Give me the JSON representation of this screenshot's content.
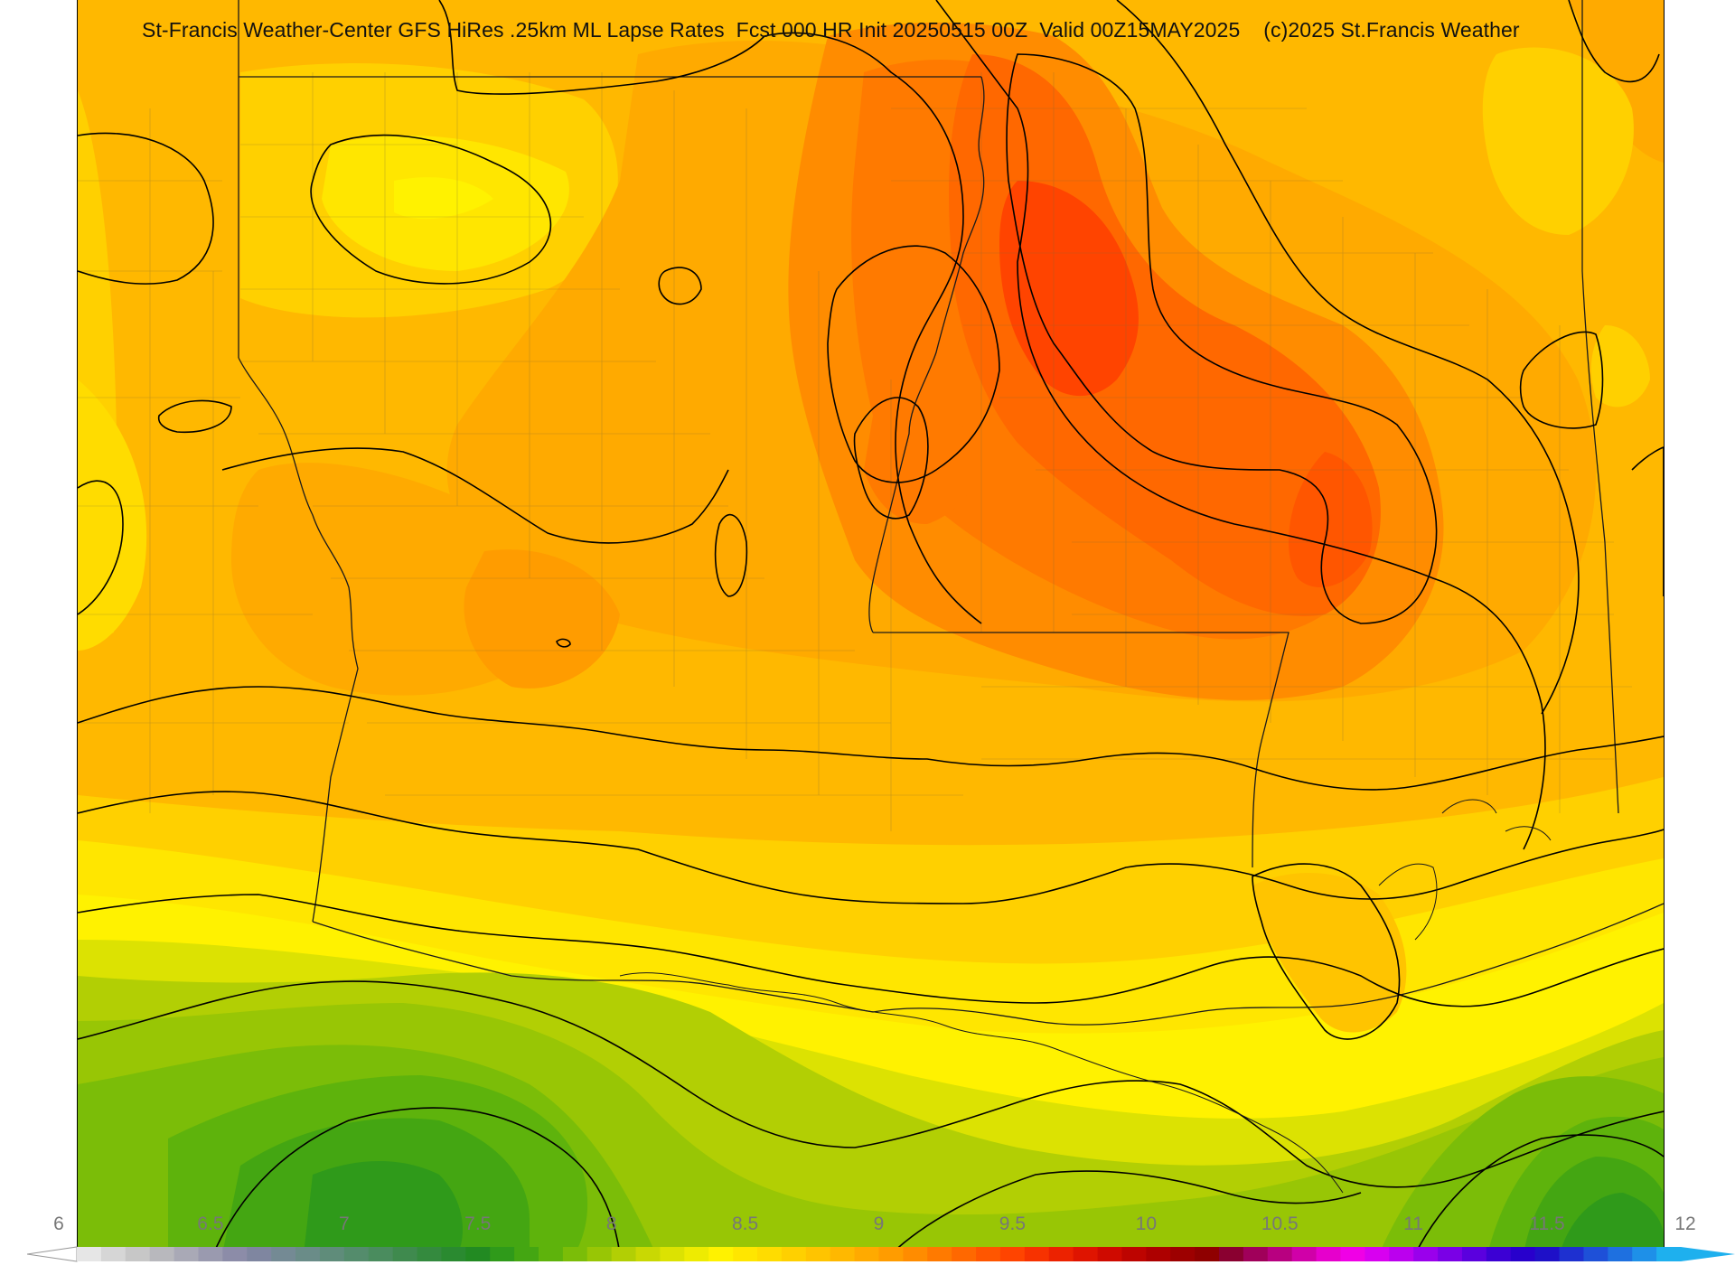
{
  "header": {
    "title": "St-Francis Weather-Center GFS HiRes .25km ML Lapse Rates  Fcst 000 HR Init 20250515 00Z  Valid 00Z15MAY2025    (c)2025 St.Francis Weather"
  },
  "map": {
    "product": "ML Lapse Rates",
    "model": "GFS HiRes .25km",
    "forecast_hour": "000",
    "init": "20250515 00Z",
    "valid": "00Z15MAY2025"
  },
  "legend": {
    "tick_labels": [
      "6",
      "6.5",
      "7",
      "7.5",
      "8",
      "8.5",
      "9",
      "9.5",
      "10",
      "10.5",
      "11",
      "11.5",
      "12"
    ],
    "min": 6,
    "max": 12,
    "step": 0.1,
    "colors": [
      "#e6e6e6",
      "#d6d6d6",
      "#c7c7c7",
      "#b8b8bd",
      "#a9a9b6",
      "#9a9aaf",
      "#8c8ca8",
      "#7f86a0",
      "#748a94",
      "#6a8c88",
      "#5f8c7a",
      "#548c6c",
      "#4a8c5e",
      "#3f8a4e",
      "#348a3e",
      "#2a8a30",
      "#228a22",
      "#2f9a1a",
      "#44a612",
      "#5eb30c",
      "#7bbd08",
      "#98c605",
      "#b2cf04",
      "#c9d803",
      "#dce202",
      "#eeeb01",
      "#fff200",
      "#ffe600",
      "#ffdc00",
      "#ffd000",
      "#ffc400",
      "#ffb800",
      "#ffaa00",
      "#ff9c00",
      "#ff8c00",
      "#ff7a00",
      "#ff6800",
      "#ff5600",
      "#ff4400",
      "#f73200",
      "#ec2200",
      "#df1400",
      "#cf0a00",
      "#bd0400",
      "#ad0000",
      "#9d0000",
      "#8f0000",
      "#8a0030",
      "#a0005a",
      "#b80080",
      "#d000a8",
      "#e600cc",
      "#f000e6",
      "#d800f0",
      "#bb00ee",
      "#9a00ec",
      "#7a00e6",
      "#5a00de",
      "#3c00d4",
      "#2800cc",
      "#1e10c8",
      "#1e30d0",
      "#1e50d8",
      "#1e70e0",
      "#1e90e8",
      "#1eb0ee"
    ],
    "colors_note_color_names": [
      "light-gray",
      "green",
      "yellow",
      "orange",
      "red",
      "magenta",
      "purple",
      "blue",
      "cyan"
    ]
  },
  "colors": {
    "contour_line": "#000000",
    "state_line": "#1a1a1a",
    "county_line": "#7a6a3a"
  }
}
